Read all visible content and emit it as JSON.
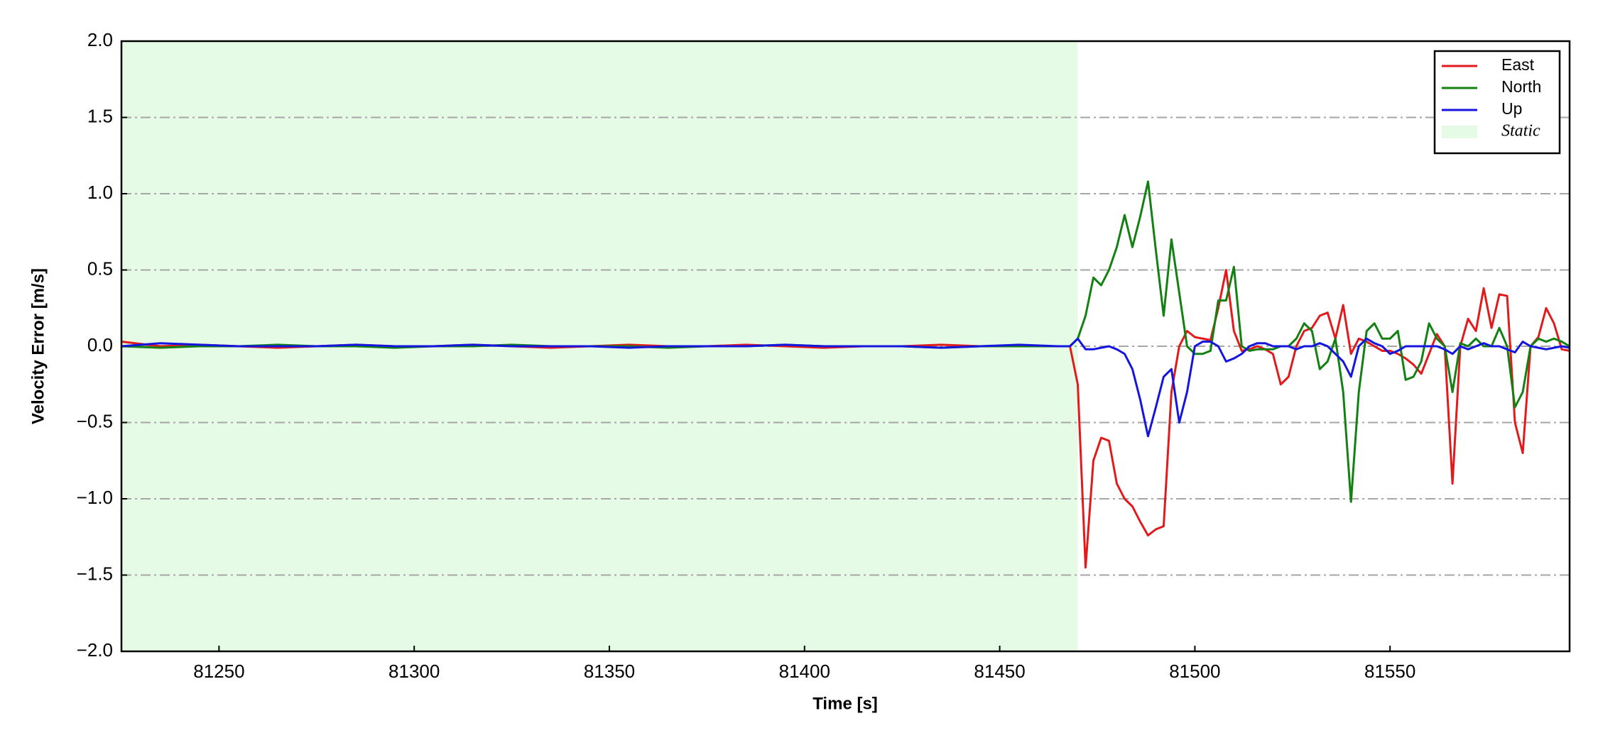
{
  "chart_data": {
    "type": "line",
    "xlabel": "Time [s]",
    "ylabel": "Velocity Error [m/s]",
    "x": [
      81225,
      81235,
      81245,
      81255,
      81265,
      81275,
      81285,
      81295,
      81305,
      81315,
      81325,
      81335,
      81345,
      81355,
      81365,
      81375,
      81385,
      81395,
      81405,
      81415,
      81425,
      81435,
      81445,
      81455,
      81465,
      81468,
      81470,
      81472,
      81474,
      81476,
      81478,
      81480,
      81482,
      81484,
      81486,
      81488,
      81490,
      81492,
      81494,
      81496,
      81498,
      81500,
      81502,
      81504,
      81506,
      81508,
      81510,
      81512,
      81514,
      81516,
      81518,
      81520,
      81522,
      81524,
      81526,
      81528,
      81530,
      81532,
      81534,
      81536,
      81538,
      81540,
      81542,
      81544,
      81546,
      81548,
      81550,
      81552,
      81554,
      81556,
      81558,
      81560,
      81562,
      81564,
      81566,
      81568,
      81570,
      81572,
      81574,
      81576,
      81578,
      81580,
      81582,
      81584,
      81586,
      81588,
      81590,
      81592,
      81594,
      81596
    ],
    "series": [
      {
        "name": "East",
        "color": "#e31a1c",
        "values": [
          0.03,
          0.0,
          0.01,
          0.0,
          -0.01,
          0.0,
          0.01,
          0.0,
          0.0,
          0.01,
          0.0,
          -0.01,
          0.0,
          0.01,
          0.0,
          0.0,
          0.01,
          0.0,
          -0.01,
          0.0,
          0.0,
          0.01,
          0.0,
          0.0,
          0.0,
          0.0,
          -0.25,
          -1.45,
          -0.75,
          -0.6,
          -0.62,
          -0.9,
          -1.0,
          -1.05,
          -1.15,
          -1.24,
          -1.2,
          -1.18,
          -0.3,
          0.0,
          0.1,
          0.06,
          0.05,
          0.04,
          0.25,
          0.5,
          0.1,
          -0.03,
          -0.02,
          0.0,
          -0.02,
          -0.05,
          -0.25,
          -0.2,
          0.0,
          0.1,
          0.12,
          0.2,
          0.22,
          0.05,
          0.27,
          -0.05,
          0.05,
          0.03,
          0.0,
          -0.03,
          -0.03,
          -0.05,
          -0.08,
          -0.12,
          -0.18,
          -0.05,
          0.08,
          0.0,
          -0.9,
          0.0,
          0.18,
          0.1,
          0.38,
          0.12,
          0.34,
          0.33,
          -0.5,
          -0.7,
          0.0,
          0.06,
          0.25,
          0.15,
          -0.02,
          -0.03
        ]
      },
      {
        "name": "North",
        "color": "#138013",
        "values": [
          0.0,
          -0.01,
          0.0,
          0.0,
          0.01,
          0.0,
          0.0,
          -0.01,
          0.0,
          0.0,
          0.01,
          0.0,
          0.0,
          0.0,
          -0.01,
          0.0,
          0.0,
          0.01,
          0.0,
          0.0,
          0.0,
          -0.01,
          0.0,
          0.0,
          0.0,
          0.0,
          0.05,
          0.2,
          0.45,
          0.4,
          0.5,
          0.65,
          0.86,
          0.65,
          0.85,
          1.08,
          0.63,
          0.2,
          0.7,
          0.35,
          0.0,
          -0.05,
          -0.05,
          -0.03,
          0.3,
          0.3,
          0.52,
          0.0,
          -0.03,
          -0.02,
          -0.02,
          -0.02,
          0.0,
          0.0,
          0.05,
          0.15,
          0.1,
          -0.15,
          -0.1,
          0.05,
          -0.3,
          -1.02,
          -0.3,
          0.1,
          0.15,
          0.05,
          0.05,
          0.1,
          -0.22,
          -0.2,
          -0.1,
          0.15,
          0.05,
          0.0,
          -0.3,
          0.02,
          0.0,
          0.05,
          0.0,
          0.0,
          0.12,
          0.0,
          -0.4,
          -0.3,
          0.0,
          0.05,
          0.03,
          0.05,
          0.03,
          0.0
        ]
      },
      {
        "name": "Up",
        "color": "#1515e0",
        "values": [
          0.0,
          0.02,
          0.01,
          0.0,
          0.0,
          0.0,
          0.01,
          0.0,
          0.0,
          0.01,
          0.0,
          0.0,
          0.0,
          -0.01,
          0.0,
          0.0,
          0.0,
          0.01,
          0.0,
          0.0,
          0.0,
          -0.01,
          0.0,
          0.01,
          0.0,
          0.0,
          0.05,
          -0.02,
          -0.02,
          -0.01,
          0.0,
          -0.02,
          -0.05,
          -0.15,
          -0.35,
          -0.59,
          -0.4,
          -0.2,
          -0.15,
          -0.5,
          -0.3,
          0.0,
          0.03,
          0.03,
          0.0,
          -0.1,
          -0.08,
          -0.05,
          0.0,
          0.02,
          0.02,
          0.0,
          0.0,
          0.0,
          -0.02,
          0.0,
          0.0,
          0.02,
          0.0,
          -0.05,
          -0.1,
          -0.2,
          0.0,
          0.05,
          0.02,
          0.0,
          -0.05,
          -0.03,
          0.0,
          0.0,
          0.0,
          0.0,
          0.0,
          -0.02,
          -0.05,
          0.0,
          -0.02,
          0.0,
          0.02,
          0.0,
          0.0,
          -0.02,
          -0.04,
          0.03,
          0.0,
          -0.01,
          -0.02,
          -0.01,
          0.0,
          -0.01
        ]
      }
    ],
    "spans": [
      {
        "name": "Static",
        "start": 81225,
        "end": 81470,
        "color": "#e6fbe6"
      }
    ],
    "xlim": [
      81225,
      81596
    ],
    "xticks": [
      81250,
      81300,
      81350,
      81400,
      81450,
      81500,
      81550
    ],
    "ylim": [
      -2,
      2
    ],
    "yticks": [
      {
        "value": -2,
        "label": "−2.0"
      },
      {
        "value": -1.5,
        "label": "−1.5"
      },
      {
        "value": -1,
        "label": "−1.0"
      },
      {
        "value": -0.5,
        "label": "−0.5"
      },
      {
        "value": 0,
        "label": "0.0"
      },
      {
        "value": 0.5,
        "label": "0.5"
      },
      {
        "value": 1,
        "label": "1.0"
      },
      {
        "value": 1.5,
        "label": "1.5"
      },
      {
        "value": 2,
        "label": "2.0"
      }
    ],
    "grid": true,
    "legend": "upper right"
  }
}
